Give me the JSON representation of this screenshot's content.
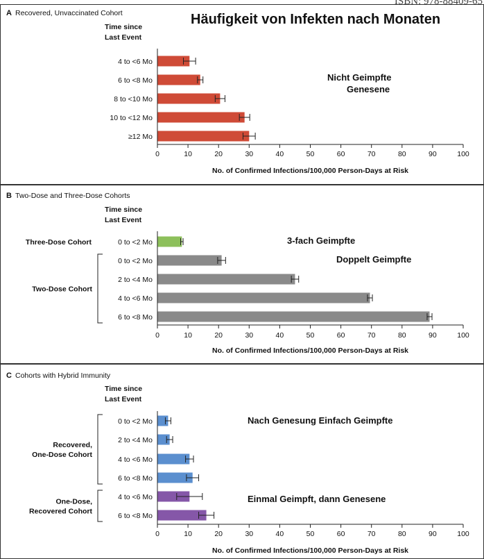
{
  "header": {
    "overlay_title": "Häufigkeit von Infekten nach Monaten",
    "corner_text": "ISBN: 978-88409-65"
  },
  "colors": {
    "recovered_unvaccinated": "#cf4b37",
    "three_dose": "#8dc05b",
    "two_dose": "#8a8a8a",
    "recovered_one_dose": "#5b8fcf",
    "one_dose_recovered": "#8557a8",
    "frame": "#333333",
    "text": "#111111"
  },
  "chart_data": [
    {
      "type": "bar",
      "orientation": "horizontal",
      "panel_letter": "A",
      "panel_title": "Recovered, Unvaccinated Cohort",
      "ylabel": "Time since Last Event",
      "xlabel": "No. of Confirmed Infections/100,000 Person-Days at Risk",
      "xlim": [
        0,
        100
      ],
      "xticks": [
        0,
        10,
        20,
        30,
        40,
        50,
        60,
        70,
        80,
        90,
        100
      ],
      "annotations": [
        "Nicht Geimpfte",
        "Genesene"
      ],
      "groups": [],
      "bars": [
        {
          "label": "4 to <6 Mo",
          "value": 10.5,
          "err": 2.0,
          "color": "recovered_unvaccinated"
        },
        {
          "label": "6 to <8 Mo",
          "value": 14.0,
          "err": 0.9,
          "color": "recovered_unvaccinated"
        },
        {
          "label": "8 to <10 Mo",
          "value": 20.5,
          "err": 1.6,
          "color": "recovered_unvaccinated"
        },
        {
          "label": "10 to <12 Mo",
          "value": 28.5,
          "err": 1.7,
          "color": "recovered_unvaccinated"
        },
        {
          "label": "≥12 Mo",
          "value": 30.0,
          "err": 2.0,
          "color": "recovered_unvaccinated"
        }
      ]
    },
    {
      "type": "bar",
      "orientation": "horizontal",
      "panel_letter": "B",
      "panel_title": "Two-Dose and Three-Dose Cohorts",
      "ylabel": "Time since Last Event",
      "xlabel": "No. of Confirmed Infections/100,000 Person-Days at Risk",
      "xlim": [
        0,
        100
      ],
      "xticks": [
        0,
        10,
        20,
        30,
        40,
        50,
        60,
        70,
        80,
        90,
        100
      ],
      "annotations": [
        "3-fach Geimpfte",
        "Doppelt Geimpfte"
      ],
      "groups": [
        {
          "name": "Three-Dose Cohort",
          "bars": [
            0
          ]
        },
        {
          "name": "Two-Dose Cohort",
          "bars": [
            1,
            2,
            3,
            4
          ]
        }
      ],
      "bars": [
        {
          "label": "0 to <2 Mo",
          "value": 8.0,
          "err": 0.4,
          "color": "three_dose"
        },
        {
          "label": "0 to <2 Mo",
          "value": 21.0,
          "err": 1.3,
          "color": "two_dose"
        },
        {
          "label": "2 to <4 Mo",
          "value": 45.0,
          "err": 1.2,
          "color": "two_dose"
        },
        {
          "label": "4 to <6 Mo",
          "value": 69.5,
          "err": 0.8,
          "color": "two_dose"
        },
        {
          "label": "6 to <8 Mo",
          "value": 89.0,
          "err": 0.8,
          "color": "two_dose"
        }
      ]
    },
    {
      "type": "bar",
      "orientation": "horizontal",
      "panel_letter": "C",
      "panel_title": "Cohorts with Hybrid Immunity",
      "ylabel": "Time since Last Event",
      "xlabel": "No. of Confirmed Infections/100,000 Person-Days at Risk",
      "xlim": [
        0,
        100
      ],
      "xticks": [
        0,
        10,
        20,
        30,
        40,
        50,
        60,
        70,
        80,
        90,
        100
      ],
      "annotations": [
        "Nach Genesung Einfach Geimpfte",
        "Einmal Geimpft, dann Genesene"
      ],
      "groups": [
        {
          "name": "Recovered, One-Dose Cohort",
          "bars": [
            0,
            1,
            2,
            3
          ]
        },
        {
          "name": "One-Dose, Recovered Cohort",
          "bars": [
            4,
            5
          ]
        }
      ],
      "bars": [
        {
          "label": "0 to <2 Mo",
          "value": 3.5,
          "err": 0.9,
          "color": "recovered_one_dose"
        },
        {
          "label": "2 to <4 Mo",
          "value": 4.0,
          "err": 1.0,
          "color": "recovered_one_dose"
        },
        {
          "label": "4 to <6 Mo",
          "value": 10.5,
          "err": 1.3,
          "color": "recovered_one_dose"
        },
        {
          "label": "6 to <8 Mo",
          "value": 11.5,
          "err": 2.0,
          "color": "recovered_one_dose"
        },
        {
          "label": "4 to <6 Mo",
          "value": 10.5,
          "err": 4.2,
          "color": "one_dose_recovered"
        },
        {
          "label": "6 to <8 Mo",
          "value": 16.0,
          "err": 2.5,
          "color": "one_dose_recovered"
        }
      ]
    }
  ]
}
